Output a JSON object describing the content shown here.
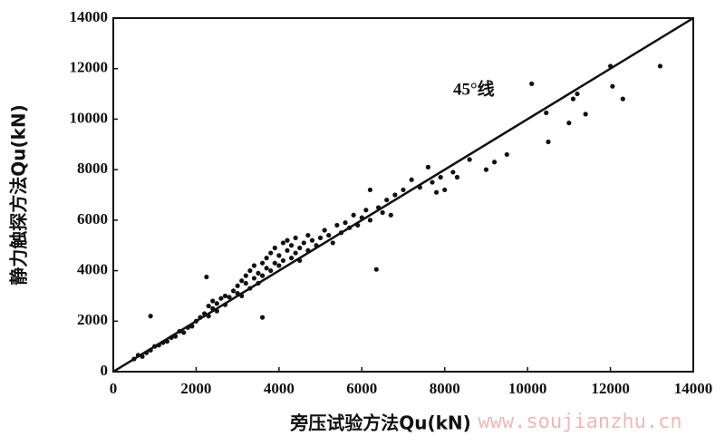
{
  "chart_data": {
    "type": "scatter",
    "xlabel": "旁压试验方法Qu(kN)",
    "ylabel": "静力触探方法Qu(kN)",
    "annotation": "45°线",
    "watermark": "www.soujianzhu.cn",
    "color": "#111111",
    "xlim": [
      0,
      14000
    ],
    "ylim": [
      0,
      14000
    ],
    "xticks": [
      0,
      2000,
      4000,
      6000,
      8000,
      10000,
      12000,
      14000
    ],
    "yticks": [
      0,
      2000,
      4000,
      6000,
      8000,
      10000,
      12000,
      14000
    ],
    "reference_line": {
      "x": [
        0,
        14000
      ],
      "y": [
        0,
        14000
      ]
    },
    "x": [
      500,
      600,
      700,
      800,
      900,
      1000,
      1100,
      1200,
      1300,
      1400,
      1500,
      1600,
      1700,
      1800,
      1900,
      2000,
      2100,
      2200,
      2300,
      2300,
      2400,
      2400,
      2500,
      2500,
      2600,
      2700,
      2700,
      2800,
      2900,
      3000,
      3000,
      3100,
      3100,
      3200,
      3200,
      3300,
      3300,
      3400,
      3400,
      3500,
      3500,
      3600,
      3600,
      3700,
      3700,
      3800,
      3800,
      3900,
      3900,
      4000,
      4000,
      4100,
      4100,
      4200,
      4200,
      4300,
      4300,
      4400,
      4400,
      4500,
      4500,
      4600,
      4700,
      4700,
      4800,
      4900,
      5000,
      5100,
      5200,
      5300,
      5400,
      5500,
      5600,
      5700,
      5800,
      5900,
      6000,
      6100,
      6200,
      6200,
      6400,
      6500,
      6600,
      6700,
      6800,
      7000,
      7200,
      7400,
      7600,
      7700,
      7800,
      7900,
      8000,
      8200,
      8300,
      8600,
      9000,
      9200,
      9500,
      10100,
      10450,
      10500,
      11000,
      11100,
      11200,
      11400,
      12000,
      12050,
      12300,
      13200,
      900,
      2250,
      3600,
      6350
    ],
    "values": [
      500,
      650,
      600,
      750,
      850,
      1000,
      1050,
      1150,
      1200,
      1350,
      1400,
      1600,
      1550,
      1750,
      1800,
      2000,
      2150,
      2300,
      2200,
      2600,
      2500,
      2800,
      2700,
      2400,
      2900,
      2650,
      3000,
      2950,
      3200,
      3100,
      3400,
      3600,
      3000,
      3500,
      3800,
      3300,
      4000,
      3700,
      4200,
      3500,
      3900,
      4300,
      3800,
      4100,
      4500,
      4000,
      4700,
      4300,
      4900,
      4200,
      4600,
      5100,
      4400,
      4800,
      5200,
      4500,
      5000,
      4700,
      5300,
      4900,
      4400,
      5100,
      4800,
      5400,
      5200,
      5000,
      5300,
      5600,
      5400,
      5100,
      5800,
      5500,
      5900,
      5700,
      6200,
      5800,
      6100,
      6400,
      6000,
      7200,
      6500,
      6300,
      6800,
      6200,
      7000,
      7200,
      7600,
      7300,
      8100,
      7500,
      7100,
      7700,
      7200,
      7900,
      7700,
      8400,
      8000,
      8300,
      8600,
      11400,
      10250,
      9100,
      9850,
      10800,
      11000,
      10200,
      12100,
      11300,
      10800,
      12100,
      2200,
      3750,
      2150,
      4050
    ]
  }
}
